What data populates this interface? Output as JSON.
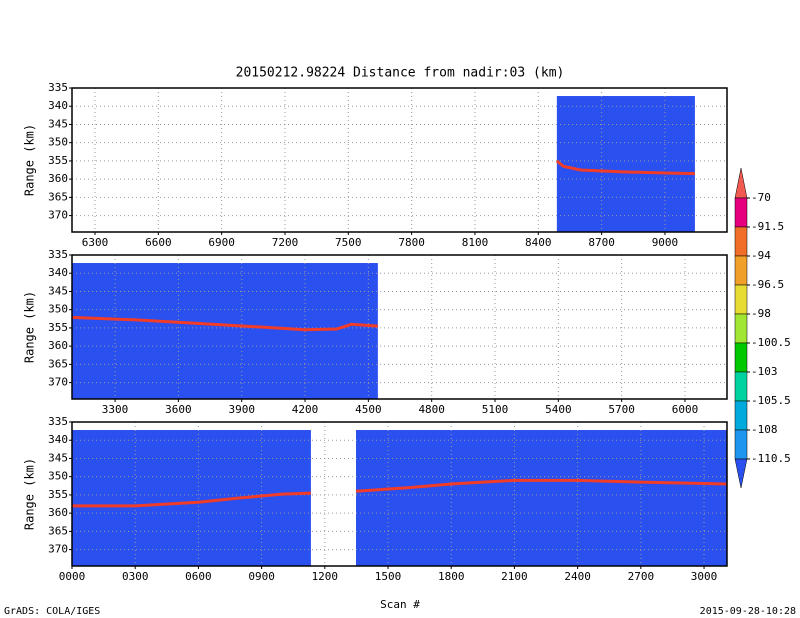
{
  "title": "20150212.98224    Distance from nadir:03 (km)",
  "x_label": "Scan #",
  "footer_left": "GrADS: COLA/IGES",
  "footer_right": "2015-09-28-10:28",
  "colorbar": {
    "labels": [
      "-70",
      "-91.5",
      "-94",
      "-96.5",
      "-98",
      "-100.5",
      "-103",
      "-105.5",
      "-108",
      "-110.5"
    ],
    "colors": [
      "#f05a50",
      "#e6007e",
      "#f06e28",
      "#f0a028",
      "#e6dc32",
      "#a0e632",
      "#00c800",
      "#00d2a0",
      "#00aadc",
      "#1e96f0",
      "#2a50f0"
    ]
  },
  "chart_data": [
    {
      "type": "heatmap",
      "y_label": "Range (km)",
      "xlim": [
        6191,
        9294
      ],
      "ylim": [
        335,
        374.5
      ],
      "xticks": [
        6300,
        6600,
        6900,
        7200,
        7500,
        7800,
        8100,
        8400,
        8700,
        9000
      ],
      "yticks": [
        335,
        340,
        345,
        350,
        355,
        360,
        365,
        370
      ],
      "grid": true,
      "coverage": [
        {
          "x": [
            8488,
            9142
          ],
          "top": 337.2
        }
      ],
      "surface": {
        "color": "#f03c28",
        "x": [
          8488,
          8520,
          8600,
          8800,
          9000,
          9142
        ],
        "values": [
          355,
          356.5,
          357.5,
          358,
          358.3,
          358.5
        ]
      }
    },
    {
      "type": "heatmap",
      "y_label": "Range (km)",
      "xlim": [
        3096,
        6199
      ],
      "ylim": [
        335,
        374.5
      ],
      "xticks": [
        3300,
        3600,
        3900,
        4200,
        4500,
        4800,
        5100,
        5400,
        5700,
        6000
      ],
      "yticks": [
        335,
        340,
        345,
        350,
        355,
        360,
        365,
        370
      ],
      "grid": true,
      "coverage": [
        {
          "x": [
            3096,
            4545
          ],
          "top": 337.2
        }
      ],
      "surface": {
        "color": "#f03c28",
        "x": [
          3096,
          3400,
          3700,
          4000,
          4200,
          4350,
          4420,
          4545
        ],
        "values": [
          352.1,
          352.8,
          353.8,
          354.8,
          355.5,
          355.3,
          354,
          354.5
        ]
      }
    },
    {
      "type": "heatmap",
      "y_label": "Range (km)",
      "xlim": [
        0,
        3109
      ],
      "ylim": [
        335,
        374.5
      ],
      "xticks": [
        {
          "value": 0,
          "label": "0000"
        },
        {
          "value": 300,
          "label": "0300"
        },
        {
          "value": 600,
          "label": "0600"
        },
        {
          "value": 900,
          "label": "0900"
        },
        1200,
        1500,
        1800,
        2100,
        2400,
        2700,
        3000
      ],
      "yticks": [
        335,
        340,
        345,
        350,
        355,
        360,
        365,
        370
      ],
      "grid": true,
      "coverage": [
        {
          "x": [
            0,
            1134
          ],
          "top": 337.2
        },
        {
          "x": [
            1348,
            3109
          ],
          "top": 337.2
        }
      ],
      "surface": {
        "color": "#f03c28",
        "x": [
          0,
          300,
          600,
          800,
          1000,
          1134,
          null,
          1348,
          1600,
          1800,
          2100,
          2400,
          2700,
          3109
        ],
        "values": [
          358,
          358,
          357,
          355.8,
          354.8,
          354.5,
          null,
          354,
          353,
          352,
          351,
          351,
          351.5,
          352
        ]
      }
    }
  ]
}
